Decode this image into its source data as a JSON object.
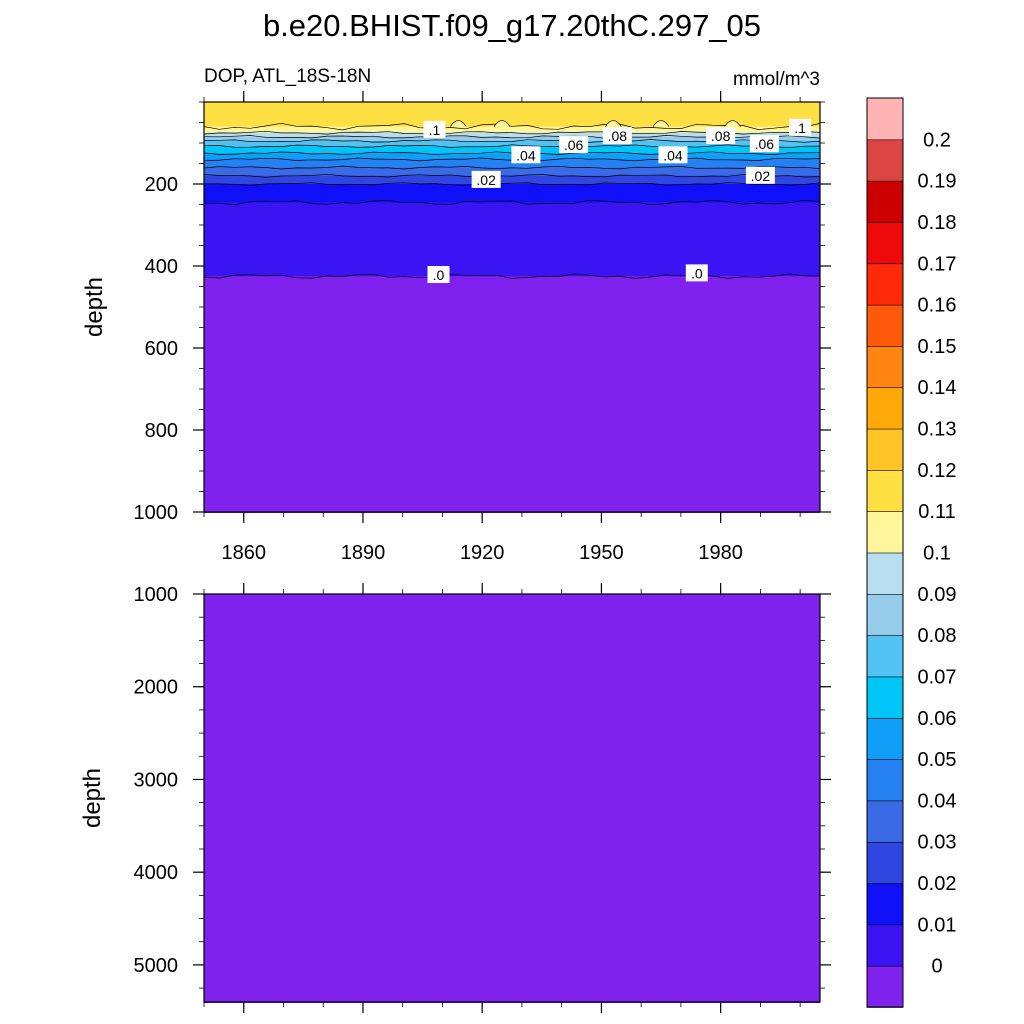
{
  "chart_data": {
    "type": "heatmap",
    "title": "b.e20.BHIST.f09_g17.20thC.297_05",
    "subtitle_left": "DOP, ATL_18S-18N",
    "subtitle_right": "mmol/m^3",
    "xlabel": "",
    "ylabel": "depth",
    "xlim": [
      1850,
      2005
    ],
    "x_ticks": [
      1860,
      1890,
      1920,
      1950,
      1980
    ],
    "panels": [
      {
        "name": "upper",
        "ylim": [
          0,
          1000
        ],
        "y_ticks": [
          200,
          400,
          600,
          800,
          1000
        ],
        "ylabel": "depth",
        "layers": [
          {
            "from_depth": 0,
            "to_depth": 60,
            "fill": "#FFE042"
          },
          {
            "from_depth": 60,
            "to_depth": 75,
            "fill": "#FFF59A"
          },
          {
            "from_depth": 75,
            "to_depth": 85,
            "fill": "#B8DEF0"
          },
          {
            "from_depth": 85,
            "to_depth": 95,
            "fill": "#94CCEA"
          },
          {
            "from_depth": 95,
            "to_depth": 108,
            "fill": "#52C2F2"
          },
          {
            "from_depth": 108,
            "to_depth": 125,
            "fill": "#00C6F8"
          },
          {
            "from_depth": 125,
            "to_depth": 140,
            "fill": "#109FF8"
          },
          {
            "from_depth": 140,
            "to_depth": 160,
            "fill": "#2580F2"
          },
          {
            "from_depth": 160,
            "to_depth": 180,
            "fill": "#3A6AE6"
          },
          {
            "from_depth": 180,
            "to_depth": 200,
            "fill": "#2F46E0"
          },
          {
            "from_depth": 200,
            "to_depth": 245,
            "fill": "#0F10F8"
          },
          {
            "from_depth": 245,
            "to_depth": 425,
            "fill": "#3A14F2"
          },
          {
            "from_depth": 425,
            "to_depth": 1000,
            "fill": "#7F22EE"
          }
        ],
        "contour_labels": [
          {
            "text": ".1",
            "x": 1908,
            "depth": 68
          },
          {
            "text": ".1",
            "x": 2000,
            "depth": 63
          },
          {
            "text": ".08",
            "x": 1954,
            "depth": 83
          },
          {
            "text": ".08",
            "x": 1980,
            "depth": 83
          },
          {
            "text": ".06",
            "x": 1943,
            "depth": 105
          },
          {
            "text": ".06",
            "x": 1991,
            "depth": 103
          },
          {
            "text": ".04",
            "x": 1931,
            "depth": 130
          },
          {
            "text": ".04",
            "x": 1968,
            "depth": 130
          },
          {
            "text": ".02",
            "x": 1921,
            "depth": 190
          },
          {
            "text": ".02",
            "x": 1990,
            "depth": 180
          },
          {
            "text": ".0",
            "x": 1909,
            "depth": 422
          },
          {
            "text": ".0",
            "x": 1974,
            "depth": 418
          }
        ]
      },
      {
        "name": "lower",
        "ylim": [
          1000,
          5400
        ],
        "y_ticks": [
          1000,
          2000,
          3000,
          4000,
          5000
        ],
        "ylabel": "depth",
        "layers": [
          {
            "from_depth": 1000,
            "to_depth": 5400,
            "fill": "#7F22EE"
          }
        ]
      }
    ],
    "colorbar": {
      "units": "mmol/m^3",
      "labels": [
        "0",
        "0.01",
        "0.02",
        "0.03",
        "0.04",
        "0.05",
        "0.06",
        "0.07",
        "0.08",
        "0.09",
        "0.1",
        "0.11",
        "0.12",
        "0.13",
        "0.14",
        "0.15",
        "0.16",
        "0.17",
        "0.18",
        "0.19",
        "0.2"
      ],
      "colors": [
        "#7F22EE",
        "#3A14F2",
        "#0F10F8",
        "#2F46E0",
        "#3A6AE6",
        "#2580F2",
        "#109FF8",
        "#00C6F8",
        "#52C2F2",
        "#94CCEA",
        "#B8DEF0",
        "#FFF59A",
        "#FFE042",
        "#FFC425",
        "#FFA80A",
        "#FF8510",
        "#FF5A0A",
        "#FF2A0A",
        "#EE0A0A",
        "#CC0000",
        "#DD4444",
        "#FFB4B4"
      ]
    }
  }
}
